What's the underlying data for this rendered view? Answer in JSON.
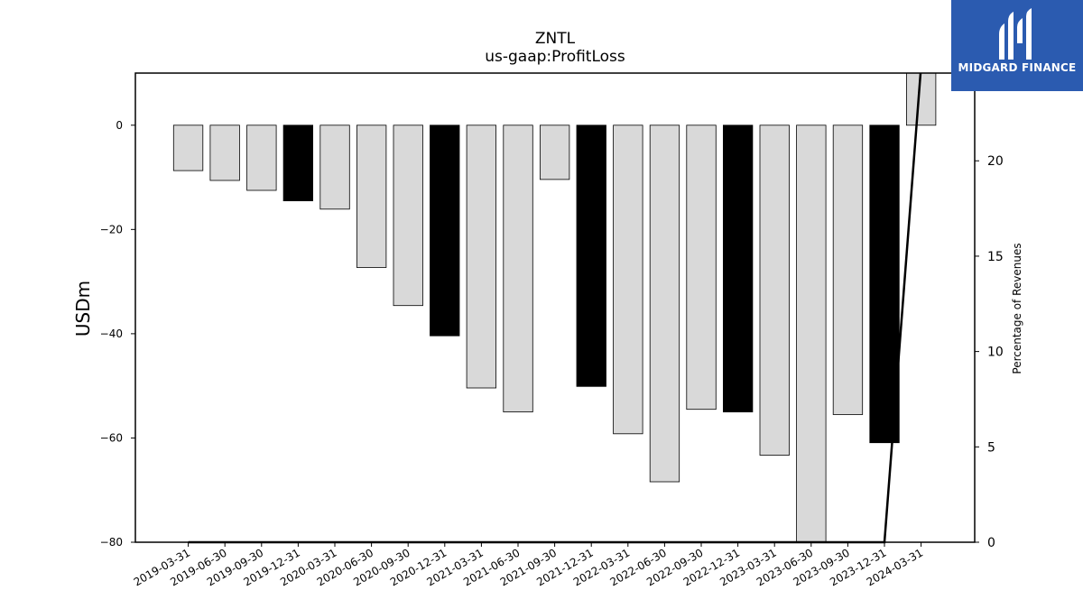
{
  "chart_data": {
    "type": "bar",
    "title": "ZNTL",
    "subtitle": "us-gaap:ProfitLoss",
    "ylabel": "USDm",
    "ylabel_right": "Percentage of Revenues",
    "categories": [
      "2019-03-31",
      "2019-06-30",
      "2019-09-30",
      "2019-12-31",
      "2020-03-31",
      "2020-06-30",
      "2020-09-30",
      "2020-12-31",
      "2021-03-31",
      "2021-06-30",
      "2021-09-30",
      "2021-12-31",
      "2022-03-31",
      "2022-06-30",
      "2022-09-30",
      "2022-12-31",
      "2023-03-31",
      "2023-06-30",
      "2023-09-30",
      "2023-12-31",
      "2024-03-31"
    ],
    "values": [
      -8.7,
      -10.6,
      -12.5,
      -14.5,
      -16.1,
      -27.3,
      -34.6,
      -40.4,
      -50.4,
      -55.0,
      -10.4,
      -50.1,
      -59.2,
      -68.4,
      -54.5,
      -55.0,
      -63.3,
      -80.0,
      -55.5,
      -60.9,
      10.0
    ],
    "highlight": [
      false,
      false,
      false,
      true,
      false,
      false,
      false,
      true,
      false,
      false,
      false,
      true,
      false,
      false,
      false,
      true,
      false,
      false,
      false,
      true,
      false
    ],
    "ylim": [
      -80,
      10
    ],
    "yticks": [
      0,
      -20,
      -40,
      -60,
      -80
    ],
    "ytick_labels": [
      "0",
      "−20",
      "−40",
      "−60",
      "−80"
    ],
    "right_axis": {
      "ylim": [
        0,
        24.6
      ],
      "yticks": [
        0,
        5,
        10,
        15,
        20
      ],
      "ytick_labels": [
        "0",
        "5",
        "10",
        "15",
        "20"
      ],
      "series_values": [
        0,
        0,
        0,
        0,
        0,
        0,
        0,
        0,
        0,
        0,
        0,
        0,
        0,
        0,
        0,
        0,
        0,
        0,
        0,
        0,
        25
      ]
    },
    "colors": {
      "bar": "#d9d9d9",
      "bar_highlight": "#000000",
      "edge": "#000000",
      "line": "#000000"
    },
    "grid": false,
    "legend": "none"
  },
  "logo": {
    "text": "MIDGARD FINANCE",
    "background": "#2b5bb0",
    "icon": "midgard-logo-icon"
  }
}
